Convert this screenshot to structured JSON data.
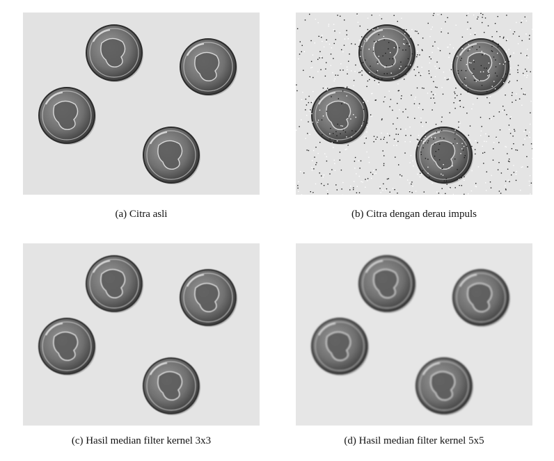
{
  "figure": {
    "panels": [
      {
        "id": "a",
        "caption": "(a) Citra asli",
        "noise": false,
        "blur": 0,
        "background": "#e2e2e2"
      },
      {
        "id": "b",
        "caption": "(b) Citra dengan derau impuls",
        "noise": true,
        "blur": 0,
        "background": "#e4e4e4"
      },
      {
        "id": "c",
        "caption": "(c) Hasil median filter kernel 3x3",
        "noise": false,
        "blur": 0.5,
        "background": "#e4e4e4"
      },
      {
        "id": "d",
        "caption": "(d) Hasil median filter kernel 5x5",
        "noise": false,
        "blur": 1.1,
        "background": "#e6e6e6"
      }
    ],
    "colors": {
      "coin_dark": "#3a3a3a",
      "coin_mid": "#707070",
      "coin_light": "#9a9a9a",
      "noise_dark": "#1a1a1a",
      "noise_light": "#ffffff"
    }
  }
}
